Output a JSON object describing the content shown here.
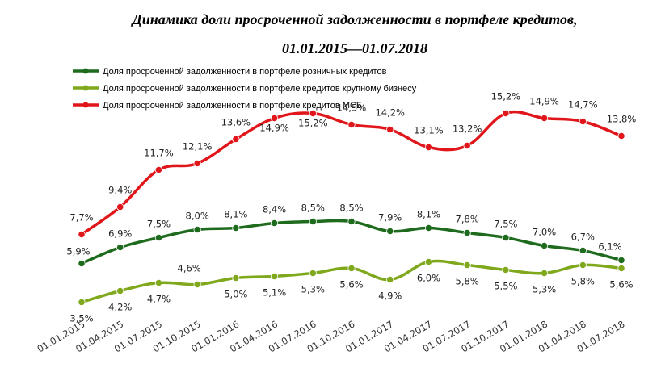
{
  "chart_data": {
    "type": "line",
    "title_line1": "Динамика доли просроченной задолженности в портфеле кредитов,",
    "title_line2": "01.01.2015—01.07.2018",
    "categories": [
      "01.01.2015",
      "01.04.2015",
      "01.07.2015",
      "01.10.2015",
      "01.01.2016",
      "01.04.2016",
      "01.07.2016",
      "01.10.2016",
      "01.01.2017",
      "01.04.2017",
      "01.07.2017",
      "01.10.2017",
      "01.01.2018",
      "01.04.2018",
      "01.07.2018"
    ],
    "series": [
      {
        "name": "Доля просроченной задолженности в портфеле розничных кредитов",
        "color": "#1e6b1e",
        "values": [
          5.9,
          6.9,
          7.5,
          8.0,
          8.1,
          8.4,
          8.5,
          8.5,
          7.9,
          8.1,
          7.8,
          7.5,
          7.0,
          6.7,
          6.1
        ],
        "labels": [
          "5,9%",
          "6,9%",
          "7,5%",
          "8,0%",
          "8,1%",
          "8,4%",
          "8,5%",
          "8,5%",
          "7,9%",
          "8,1%",
          "7,8%",
          "7,5%",
          "7,0%",
          "6,7%",
          "6,1%"
        ]
      },
      {
        "name": "Доля просроченной задолженности в портфеле кредитов крупному бизнесу",
        "color": "#7fa81c",
        "values": [
          3.5,
          4.2,
          4.7,
          4.6,
          5.0,
          5.1,
          5.3,
          5.6,
          4.9,
          6.0,
          5.8,
          5.5,
          5.3,
          5.8,
          5.6
        ],
        "labels": [
          "3,5%",
          "4,2%",
          "4,7%",
          "4,6%",
          "5,0%",
          "5,1%",
          "5,3%",
          "5,6%",
          "4,9%",
          "6,0%",
          "5,8%",
          "5,5%",
          "5,3%",
          "5,8%",
          "5,6%"
        ]
      },
      {
        "name": "Доля просроченной задолженности в портфеле кредитов МСБ",
        "color": "#e0161b",
        "values": [
          7.7,
          9.4,
          11.7,
          12.1,
          13.6,
          14.9,
          15.2,
          14.5,
          14.2,
          13.1,
          13.2,
          15.2,
          14.9,
          14.7,
          13.8
        ],
        "labels": [
          "7,7%",
          "9,4%",
          "11,7%",
          "12,1%",
          "13,6%",
          "14,9%",
          "15,2%",
          "14,5%",
          "14,2%",
          "13,1%",
          "13,2%",
          "15,2%",
          "14,9%",
          "14,7%",
          "13,8%"
        ]
      }
    ],
    "legend_position": "top-left",
    "grid": false
  }
}
